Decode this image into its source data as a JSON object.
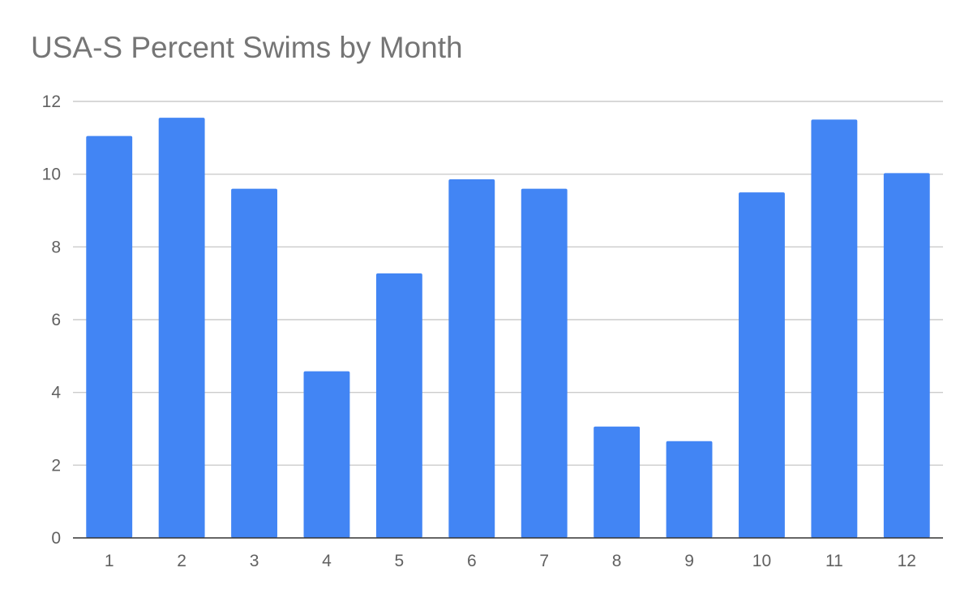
{
  "chart_data": {
    "type": "bar",
    "title": "USA-S Percent Swims by Month",
    "xlabel": "",
    "ylabel": "",
    "categories": [
      "1",
      "2",
      "3",
      "4",
      "5",
      "6",
      "7",
      "8",
      "9",
      "10",
      "11",
      "12"
    ],
    "series": [
      {
        "values": [
          11.05,
          11.55,
          9.6,
          4.58,
          7.27,
          9.86,
          9.6,
          3.06,
          2.66,
          9.5,
          11.5,
          10.03
        ],
        "color": "#4285f4"
      }
    ],
    "ylim": [
      0,
      12
    ],
    "yticks": [
      0,
      2,
      4,
      6,
      8,
      10,
      12
    ],
    "grid": true,
    "legend": "none"
  }
}
